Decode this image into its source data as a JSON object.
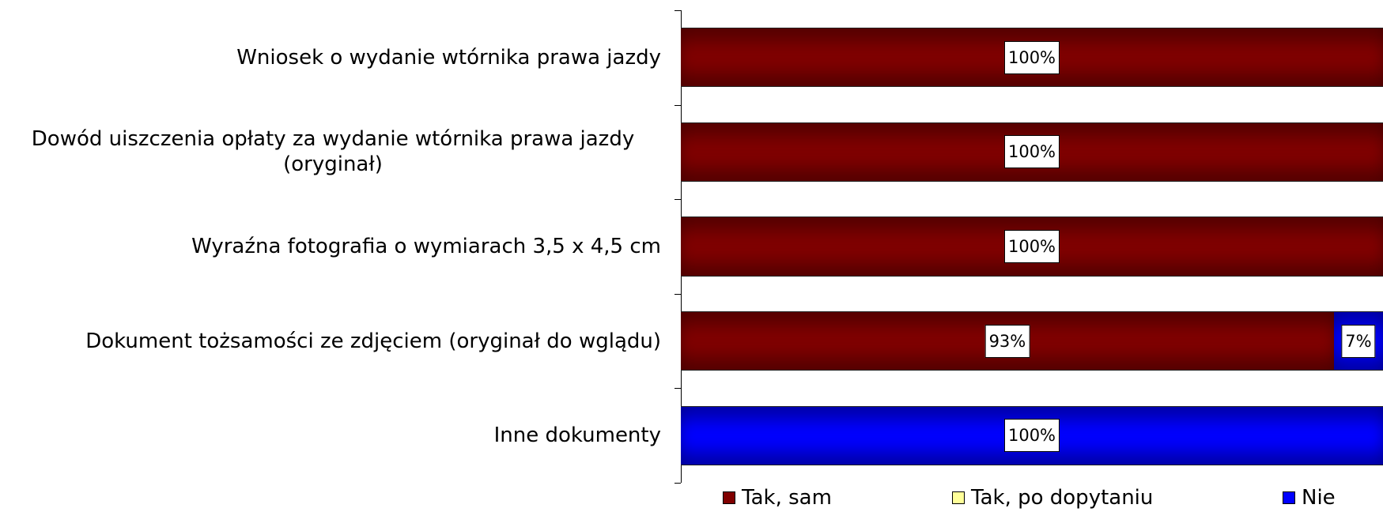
{
  "chart_data": {
    "type": "stacked-bar-horizontal",
    "categories": [
      "Wniosek o wydanie wtórnika prawa jazdy",
      "Dowód uiszczenia opłaty za wydanie wtórnika prawa jazdy (oryginał)",
      "Wyraźna fotografia o wymiarach 3,5 x 4,5 cm",
      "Dokument tożsamości ze zdjęciem (oryginał do wglądu)",
      "Inne dokumenty"
    ],
    "series": [
      {
        "name": "Tak, sam",
        "color": "#800000",
        "values": [
          100,
          100,
          100,
          93,
          0
        ],
        "value_labels": [
          "100%",
          "100%",
          "100%",
          "93%",
          null
        ]
      },
      {
        "name": "Tak, po dopytaniu",
        "color": "#ffff99",
        "values": [
          0,
          0,
          0,
          0,
          0
        ],
        "value_labels": [
          null,
          null,
          null,
          null,
          null
        ]
      },
      {
        "name": "Nie",
        "color": "#0000ff",
        "values": [
          0,
          0,
          0,
          7,
          100
        ],
        "value_labels": [
          null,
          null,
          null,
          "7%",
          "100%"
        ]
      }
    ],
    "xlim": [
      0,
      100
    ],
    "legend": "bottom"
  }
}
